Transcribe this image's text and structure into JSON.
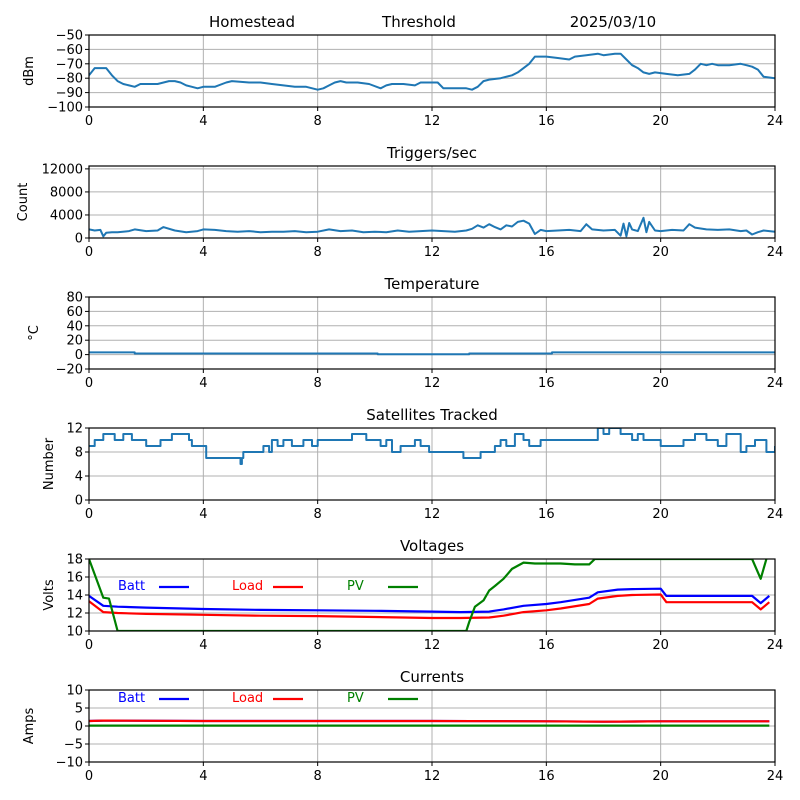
{
  "header": {
    "site": "Homestead",
    "mode": "Threshold",
    "date": "2025/03/10"
  },
  "chart_data": [
    {
      "id": "signal",
      "type": "line",
      "title": "",
      "xlabel": "",
      "ylabel": "dBm",
      "xlim": [
        0,
        24
      ],
      "ylim": [
        -100,
        -50
      ],
      "xticks": [
        0,
        4,
        8,
        12,
        16,
        20,
        24
      ],
      "yticks": [
        -100,
        -90,
        -80,
        -70,
        -60,
        -50
      ],
      "ytick_labels": [
        "−100",
        "−90",
        "−80",
        "−70",
        "−60",
        "−50"
      ],
      "grid": true,
      "series": [
        {
          "name": "dBm",
          "color": "#1f77b4",
          "x": [
            0,
            0.2,
            0.4,
            0.6,
            0.8,
            1.0,
            1.2,
            1.4,
            1.6,
            1.8,
            2.0,
            2.4,
            2.8,
            3.0,
            3.2,
            3.4,
            3.6,
            3.8,
            4.0,
            4.4,
            4.8,
            5.0,
            5.6,
            6.0,
            6.4,
            6.8,
            7.2,
            7.6,
            8.0,
            8.2,
            8.4,
            8.6,
            8.8,
            9.0,
            9.4,
            9.8,
            10.2,
            10.4,
            10.6,
            11.0,
            11.4,
            11.6,
            11.8,
            12.2,
            12.4,
            12.8,
            13.2,
            13.4,
            13.6,
            13.8,
            14.0,
            14.4,
            14.8,
            15.0,
            15.4,
            15.6,
            15.8,
            16.0,
            16.4,
            16.8,
            17.0,
            17.4,
            17.8,
            18.0,
            18.4,
            18.6,
            18.8,
            19.0,
            19.2,
            19.4,
            19.6,
            19.8,
            20.2,
            20.6,
            21.0,
            21.2,
            21.4,
            21.6,
            21.8,
            22.0,
            22.4,
            22.8,
            23.0,
            23.2,
            23.4,
            23.6,
            24.0
          ],
          "y": [
            -78,
            -73,
            -73,
            -73,
            -78,
            -82,
            -84,
            -85,
            -86,
            -84,
            -84,
            -84,
            -82,
            -82,
            -83,
            -85,
            -86,
            -87,
            -86,
            -86,
            -83,
            -82,
            -83,
            -83,
            -84,
            -85,
            -86,
            -86,
            -88,
            -87,
            -85,
            -83,
            -82,
            -83,
            -83,
            -84,
            -87,
            -85,
            -84,
            -84,
            -85,
            -83,
            -83,
            -83,
            -87,
            -87,
            -87,
            -88,
            -86,
            -82,
            -81,
            -80,
            -78,
            -76,
            -70,
            -65,
            -65,
            -65,
            -66,
            -67,
            -65,
            -64,
            -63,
            -64,
            -63,
            -63,
            -67,
            -71,
            -73,
            -76,
            -77,
            -76,
            -77,
            -78,
            -77,
            -74,
            -70,
            -71,
            -70,
            -71,
            -71,
            -70,
            -71,
            -72,
            -74,
            -79,
            -80
          ]
        }
      ]
    },
    {
      "id": "triggers",
      "type": "line",
      "title": "Triggers/sec",
      "xlabel": "",
      "ylabel": "Count",
      "xlim": [
        0,
        24
      ],
      "ylim": [
        0,
        12500
      ],
      "xticks": [
        0,
        4,
        8,
        12,
        16,
        20,
        24
      ],
      "yticks": [
        0,
        4000,
        8000,
        12000
      ],
      "ytick_labels": [
        "0",
        "4000",
        "8000",
        "12000"
      ],
      "grid": true,
      "series": [
        {
          "name": "Count",
          "color": "#1f77b4",
          "x": [
            0,
            0.2,
            0.4,
            0.5,
            0.6,
            0.8,
            1.0,
            1.4,
            1.6,
            2.0,
            2.4,
            2.6,
            3.0,
            3.4,
            3.8,
            4.0,
            4.4,
            4.8,
            5.2,
            5.6,
            6.0,
            6.4,
            6.8,
            7.2,
            7.6,
            8.0,
            8.4,
            8.8,
            9.2,
            9.6,
            10.0,
            10.4,
            10.8,
            11.2,
            11.6,
            12.0,
            12.4,
            12.8,
            13.2,
            13.4,
            13.6,
            13.8,
            14.0,
            14.2,
            14.4,
            14.6,
            14.8,
            15.0,
            15.2,
            15.4,
            15.6,
            15.8,
            16.0,
            16.4,
            16.8,
            17.2,
            17.4,
            17.6,
            18.0,
            18.4,
            18.6,
            18.7,
            18.8,
            18.9,
            19.0,
            19.2,
            19.4,
            19.5,
            19.6,
            19.8,
            20.0,
            20.4,
            20.8,
            21.0,
            21.2,
            21.6,
            22.0,
            22.4,
            22.8,
            23.0,
            23.2,
            23.4,
            23.6,
            24.0
          ],
          "y": [
            1500,
            1300,
            1400,
            300,
            900,
            1000,
            1000,
            1200,
            1500,
            1200,
            1300,
            1900,
            1300,
            1000,
            1200,
            1500,
            1400,
            1200,
            1100,
            1200,
            1000,
            1100,
            1100,
            1200,
            1000,
            1100,
            1500,
            1200,
            1300,
            1000,
            1100,
            1000,
            1300,
            1100,
            1200,
            1300,
            1200,
            1100,
            1300,
            1600,
            2200,
            1800,
            2400,
            1900,
            1500,
            2200,
            2000,
            2800,
            3000,
            2500,
            700,
            1400,
            1200,
            1300,
            1400,
            1200,
            2400,
            1500,
            1300,
            1400,
            400,
            2500,
            300,
            2600,
            1500,
            1200,
            3500,
            1000,
            2800,
            1300,
            1200,
            1400,
            1300,
            2400,
            1800,
            1500,
            1400,
            1500,
            1200,
            1300,
            600,
            1000,
            1300,
            1100
          ]
        }
      ]
    },
    {
      "id": "temperature",
      "type": "line",
      "title": "Temperature",
      "xlabel": "",
      "ylabel": "°C",
      "xlim": [
        0,
        24
      ],
      "ylim": [
        -20,
        80
      ],
      "xticks": [
        0,
        4,
        8,
        12,
        16,
        20,
        24
      ],
      "yticks": [
        -20,
        0,
        20,
        40,
        60,
        80
      ],
      "ytick_labels": [
        "−20",
        "0",
        "20",
        "40",
        "60",
        "80"
      ],
      "grid": true,
      "series": [
        {
          "name": "Temperature",
          "color": "#1f77b4",
          "x": [
            0,
            1.6,
            1.6,
            10.1,
            10.1,
            13.3,
            13.3,
            16.2,
            16.2,
            24
          ],
          "y": [
            3,
            3,
            1.5,
            1.5,
            0.5,
            0.5,
            1.5,
            1.5,
            3,
            3
          ]
        }
      ]
    },
    {
      "id": "satellites",
      "type": "line",
      "title": "Satellites Tracked",
      "xlabel": "",
      "ylabel": "Number",
      "xlim": [
        0,
        24
      ],
      "ylim": [
        0,
        12
      ],
      "xticks": [
        0,
        4,
        8,
        12,
        16,
        20,
        24
      ],
      "yticks": [
        0,
        4,
        8,
        12
      ],
      "ytick_labels": [
        "0",
        "4",
        "8",
        "12"
      ],
      "grid": true,
      "step": true,
      "series": [
        {
          "name": "Satellites",
          "color": "#1f77b4",
          "x": [
            0,
            0.2,
            0.5,
            0.9,
            1.2,
            1.5,
            2.0,
            2.5,
            2.9,
            3.5,
            3.6,
            4.1,
            5.3,
            5.35,
            5.4,
            5.6,
            6.1,
            6.3,
            6.4,
            6.6,
            6.8,
            7.1,
            7.5,
            7.8,
            8.0,
            9.2,
            9.7,
            10.2,
            10.4,
            10.6,
            10.9,
            11.4,
            11.6,
            11.9,
            13.0,
            13.1,
            13.5,
            13.7,
            14.2,
            14.4,
            14.6,
            14.9,
            15.2,
            15.4,
            15.8,
            16.2,
            16.4,
            17.6,
            17.8,
            18.0,
            18.2,
            18.6,
            18.8,
            19.0,
            19.2,
            19.4,
            20.0,
            20.4,
            20.8,
            21.2,
            21.6,
            22.0,
            22.3,
            22.8,
            23.0,
            23.3,
            23.7,
            24.0
          ],
          "y": [
            9,
            10,
            11,
            10,
            11,
            10,
            9,
            10,
            11,
            10,
            9,
            7,
            6,
            7,
            8,
            8,
            9,
            8,
            10,
            9,
            10,
            9,
            10,
            9,
            10,
            11,
            10,
            9,
            10,
            8,
            9,
            10,
            9,
            8,
            8,
            7,
            7,
            8,
            9,
            10,
            9,
            11,
            10,
            9,
            10,
            10,
            10,
            10,
            12,
            11,
            12,
            11,
            11,
            10,
            11,
            10,
            9,
            9,
            10,
            11,
            10,
            9,
            11,
            8,
            9,
            10,
            8,
            9
          ]
        }
      ]
    },
    {
      "id": "voltages",
      "type": "line",
      "title": "Voltages",
      "xlabel": "",
      "ylabel": "Volts",
      "xlim": [
        0,
        24
      ],
      "ylim": [
        10,
        18
      ],
      "xticks": [
        0,
        4,
        8,
        12,
        16,
        20,
        24
      ],
      "yticks": [
        10,
        12,
        14,
        16,
        18
      ],
      "ytick_labels": [
        "10",
        "12",
        "14",
        "16",
        "18"
      ],
      "grid": true,
      "legend": {
        "placement": "upper-left-inside",
        "orientation": "horizontal"
      },
      "series": [
        {
          "name": "Batt",
          "color": "#0000ff",
          "x": [
            0,
            0.5,
            1,
            2,
            4,
            6,
            8,
            10,
            12,
            13,
            14,
            14.5,
            15.2,
            16,
            16.5,
            17.5,
            17.8,
            18.5,
            19,
            20,
            20.2,
            21,
            22,
            23.2,
            23.5,
            23.8
          ],
          "y": [
            13.9,
            12.8,
            12.7,
            12.6,
            12.45,
            12.35,
            12.3,
            12.25,
            12.15,
            12.1,
            12.15,
            12.4,
            12.8,
            13.0,
            13.2,
            13.7,
            14.3,
            14.6,
            14.65,
            14.7,
            13.9,
            13.9,
            13.9,
            13.9,
            13.1,
            13.9
          ]
        },
        {
          "name": "Load",
          "color": "#ff0000",
          "x": [
            0,
            0.5,
            1,
            2,
            4,
            6,
            8,
            10,
            12,
            13,
            14,
            14.5,
            15.2,
            16,
            16.5,
            17.5,
            17.8,
            18.5,
            19,
            20,
            20.2,
            21,
            22,
            23.2,
            23.5,
            23.8
          ],
          "y": [
            13.3,
            12.1,
            12.0,
            11.9,
            11.8,
            11.7,
            11.65,
            11.55,
            11.45,
            11.45,
            11.5,
            11.7,
            12.1,
            12.3,
            12.5,
            13.0,
            13.6,
            13.9,
            14.0,
            14.05,
            13.2,
            13.2,
            13.2,
            13.2,
            12.4,
            13.2
          ]
        },
        {
          "name": "PV",
          "color": "#008000",
          "x": [
            0,
            0.5,
            0.7,
            1.0,
            13.2,
            13.3,
            13.5,
            13.8,
            14.0,
            14.2,
            14.5,
            14.8,
            15.2,
            15.6,
            16,
            16.5,
            17.0,
            17.5,
            17.7,
            23.2,
            23.5,
            23.7
          ],
          "y": [
            18,
            13.7,
            13.6,
            10,
            10,
            11,
            12.7,
            13.4,
            14.5,
            15.0,
            15.8,
            16.9,
            17.6,
            17.5,
            17.5,
            17.5,
            17.4,
            17.4,
            18,
            18,
            15.8,
            18
          ]
        }
      ]
    },
    {
      "id": "currents",
      "type": "line",
      "title": "Currents",
      "xlabel": "",
      "ylabel": "Amps",
      "xlim": [
        0,
        24
      ],
      "ylim": [
        -10,
        10
      ],
      "xticks": [
        0,
        4,
        8,
        12,
        16,
        20,
        24
      ],
      "yticks": [
        -10,
        -5,
        0,
        5,
        10
      ],
      "ytick_labels": [
        "−10",
        "−5",
        "0",
        "5",
        "10"
      ],
      "grid": true,
      "legend": {
        "placement": "upper-left-inside",
        "orientation": "horizontal"
      },
      "series": [
        {
          "name": "Batt",
          "color": "#0000ff",
          "x": [
            0,
            0.5,
            4,
            8,
            12,
            16,
            18,
            20,
            23.8
          ],
          "y": [
            1.4,
            1.5,
            1.4,
            1.4,
            1.4,
            1.3,
            1.2,
            1.3,
            1.3
          ]
        },
        {
          "name": "Load",
          "color": "#ff0000",
          "x": [
            0,
            0.5,
            4,
            8,
            12,
            16,
            18,
            20,
            23.8
          ],
          "y": [
            1.4,
            1.5,
            1.4,
            1.4,
            1.4,
            1.3,
            1.2,
            1.3,
            1.3
          ]
        },
        {
          "name": "PV",
          "color": "#008000",
          "x": [
            0,
            23.8
          ],
          "y": [
            0.1,
            0.1
          ]
        }
      ]
    }
  ]
}
